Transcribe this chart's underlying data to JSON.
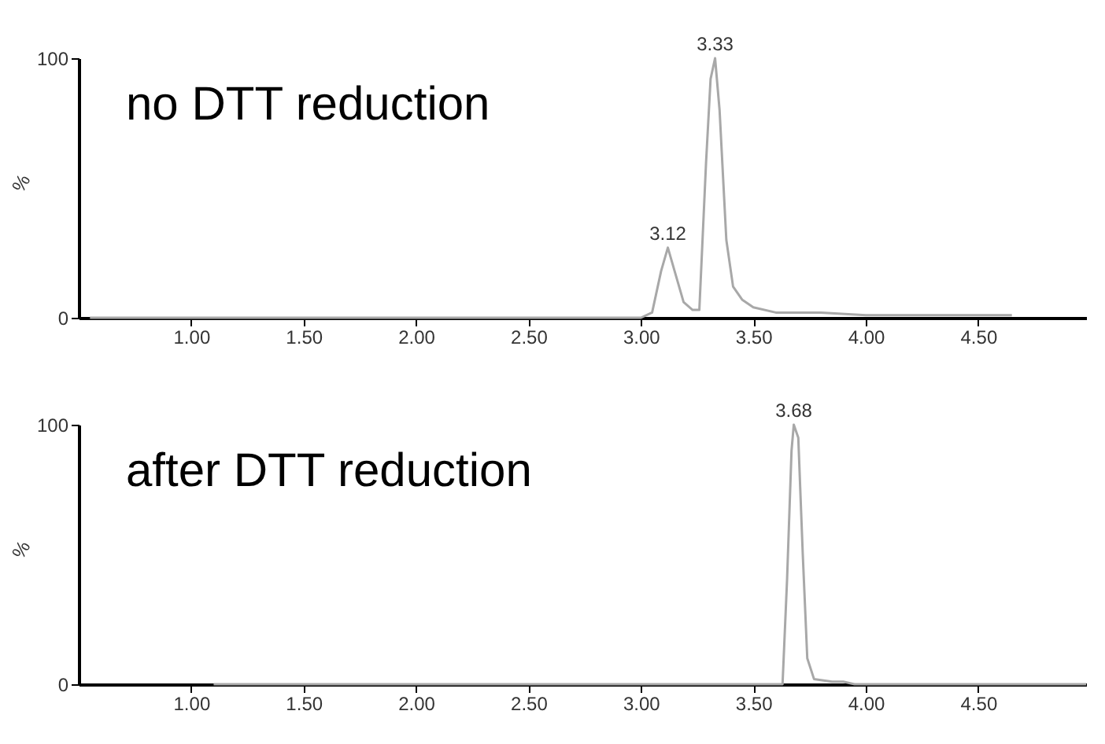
{
  "chart_data": [
    {
      "type": "line",
      "annotations": [
        "no DTT reduction",
        {
          "text": "3.12",
          "x": 3.12,
          "y": 27
        },
        {
          "text": "3.33",
          "x": 3.33,
          "y": 100
        }
      ],
      "x": [
        0.55,
        3.0,
        3.05,
        3.09,
        3.12,
        3.15,
        3.19,
        3.23,
        3.26,
        3.29,
        3.31,
        3.33,
        3.35,
        3.38,
        3.41,
        3.45,
        3.5,
        3.6,
        3.8,
        4.0,
        4.3,
        4.65
      ],
      "series": [
        {
          "color": "#a8a8a8",
          "values": [
            0,
            0,
            2,
            18,
            27,
            18,
            6,
            3,
            3,
            60,
            92,
            100,
            80,
            30,
            12,
            7,
            4,
            2,
            2,
            1,
            1,
            1
          ]
        }
      ],
      "xlim": [
        0.5,
        4.98
      ],
      "ylim": [
        0,
        100
      ],
      "ylabel": "%",
      "xticks": [
        {
          "value": 1,
          "label": "1.00"
        },
        {
          "value": 1.5,
          "label": "1.50"
        },
        {
          "value": 2,
          "label": "2.00"
        },
        {
          "value": 2.5,
          "label": "2.50"
        },
        {
          "value": 3,
          "label": "3.00"
        },
        {
          "value": 3.5,
          "label": "3.50"
        },
        {
          "value": 4,
          "label": "4.00"
        },
        {
          "value": 4.5,
          "label": "4.50"
        }
      ],
      "yticks": [
        0,
        100
      ],
      "grid": false,
      "marker": "none",
      "line_style": "solid"
    },
    {
      "type": "line",
      "annotations": [
        "after DTT reduction",
        {
          "text": "3.68",
          "x": 3.68,
          "y": 100
        }
      ],
      "x": [
        1.1,
        3.63,
        3.65,
        3.67,
        3.68,
        3.7,
        3.72,
        3.74,
        3.77,
        3.85,
        3.9,
        3.95,
        4.98
      ],
      "series": [
        {
          "color": "#a8a8a8",
          "values": [
            0,
            0,
            40,
            90,
            100,
            95,
            50,
            10,
            2,
            1,
            1,
            0,
            0
          ]
        }
      ],
      "xlim": [
        0.5,
        4.98
      ],
      "ylim": [
        0,
        100
      ],
      "ylabel": "%",
      "xticks": [
        {
          "value": 1,
          "label": "1.00"
        },
        {
          "value": 1.5,
          "label": "1.50"
        },
        {
          "value": 2,
          "label": "2.00"
        },
        {
          "value": 2.5,
          "label": "2.50"
        },
        {
          "value": 3,
          "label": "3.00"
        },
        {
          "value": 3.5,
          "label": "3.50"
        },
        {
          "value": 4,
          "label": "4.00"
        },
        {
          "value": 4.5,
          "label": "4.50"
        }
      ],
      "yticks": [
        0,
        100
      ],
      "grid": false,
      "marker": "none",
      "line_style": "solid"
    }
  ]
}
